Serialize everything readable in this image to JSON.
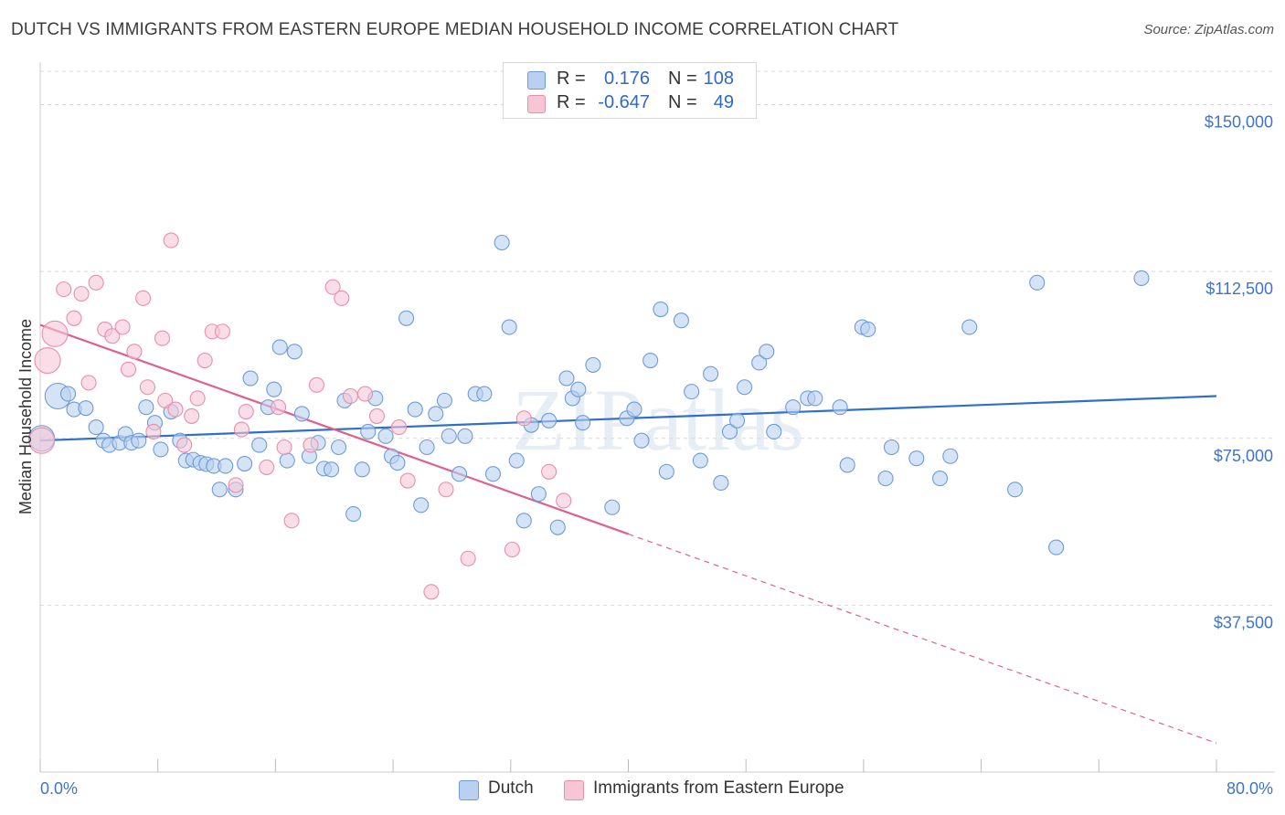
{
  "title": "DUTCH VS IMMIGRANTS FROM EASTERN EUROPE MEDIAN HOUSEHOLD INCOME CORRELATION CHART",
  "source": "Source: ZipAtlas.com",
  "watermark": "ZIPatlas",
  "legend_top": {
    "rows": [
      {
        "r_label": "R =",
        "r_value": "0.176",
        "n_label": "N =",
        "n_value": "108"
      },
      {
        "r_label": "R =",
        "r_value": "-0.647",
        "n_label": "N =",
        "n_value": "49"
      }
    ]
  },
  "colors": {
    "dutch_fill": "#b9d0f0",
    "dutch_stroke": "#6f9bd8",
    "dutch_line": "#2f6fca",
    "imm_fill": "#f7c6d5",
    "imm_stroke": "#e88fab",
    "imm_line": "#e0608d",
    "grid": "#d9d9d9",
    "accent_text": "#3f74c9"
  },
  "chart_data": {
    "type": "scatter",
    "title": "DUTCH VS IMMIGRANTS FROM EASTERN EUROPE MEDIAN HOUSEHOLD INCOME CORRELATION CHART",
    "xlabel": "",
    "ylabel": "Median Household Income",
    "xlim": [
      0,
      80
    ],
    "ylim": [
      0,
      157500
    ],
    "x_tick_labels": [
      "0.0%",
      "80.0%"
    ],
    "y_ticks": [
      37500,
      75000,
      112500,
      150000
    ],
    "y_tick_labels": [
      "$37,500",
      "$75,000",
      "$112,500",
      "$150,000"
    ],
    "grid": true,
    "legend_placement": "bottom",
    "series": [
      {
        "name": "Dutch",
        "R": 0.176,
        "N": 108,
        "trend": {
          "x": [
            0,
            80
          ],
          "y": [
            74500,
            84500
          ],
          "dashed_extension": false
        },
        "points": [
          [
            0.1,
            75000
          ],
          [
            1.2,
            84500
          ],
          [
            1.9,
            85000
          ],
          [
            2.3,
            81500
          ],
          [
            3.1,
            81800
          ],
          [
            3.8,
            77500
          ],
          [
            4.3,
            74500
          ],
          [
            4.7,
            73500
          ],
          [
            5.4,
            74000
          ],
          [
            5.8,
            76000
          ],
          [
            6.2,
            74000
          ],
          [
            6.7,
            74500
          ],
          [
            7.2,
            82000
          ],
          [
            7.8,
            78500
          ],
          [
            8.2,
            72500
          ],
          [
            8.9,
            81000
          ],
          [
            9.5,
            74500
          ],
          [
            9.9,
            70000
          ],
          [
            10.4,
            70200
          ],
          [
            10.9,
            69500
          ],
          [
            11.3,
            69200
          ],
          [
            11.8,
            68800
          ],
          [
            12.2,
            63500
          ],
          [
            12.6,
            68800
          ],
          [
            13.3,
            63500
          ],
          [
            13.9,
            69300
          ],
          [
            14.3,
            88500
          ],
          [
            14.9,
            73500
          ],
          [
            15.5,
            82000
          ],
          [
            15.9,
            86000
          ],
          [
            16.3,
            95500
          ],
          [
            16.8,
            70000
          ],
          [
            17.3,
            94500
          ],
          [
            17.8,
            80500
          ],
          [
            18.3,
            71000
          ],
          [
            18.9,
            74000
          ],
          [
            19.3,
            68200
          ],
          [
            19.8,
            68000
          ],
          [
            20.3,
            73000
          ],
          [
            20.7,
            83500
          ],
          [
            21.3,
            58000
          ],
          [
            21.9,
            68000
          ],
          [
            22.3,
            76500
          ],
          [
            22.8,
            84000
          ],
          [
            23.5,
            75500
          ],
          [
            23.9,
            71000
          ],
          [
            24.3,
            69500
          ],
          [
            24.9,
            102000
          ],
          [
            25.5,
            81500
          ],
          [
            25.9,
            60000
          ],
          [
            26.3,
            73000
          ],
          [
            26.9,
            80500
          ],
          [
            27.5,
            83500
          ],
          [
            27.8,
            75500
          ],
          [
            28.5,
            67000
          ],
          [
            28.9,
            75500
          ],
          [
            29.6,
            85000
          ],
          [
            30.2,
            85000
          ],
          [
            30.8,
            67000
          ],
          [
            31.4,
            119000
          ],
          [
            31.9,
            100000
          ],
          [
            32.4,
            70000
          ],
          [
            32.9,
            56500
          ],
          [
            33.4,
            78000
          ],
          [
            33.9,
            62500
          ],
          [
            34.6,
            79000
          ],
          [
            35.2,
            55000
          ],
          [
            35.8,
            88500
          ],
          [
            36.2,
            84000
          ],
          [
            36.6,
            86000
          ],
          [
            36.9,
            78500
          ],
          [
            37.6,
            91500
          ],
          [
            38.9,
            59500
          ],
          [
            39.9,
            79500
          ],
          [
            40.4,
            81500
          ],
          [
            40.9,
            74500
          ],
          [
            41.5,
            92500
          ],
          [
            42.2,
            104000
          ],
          [
            42.6,
            67500
          ],
          [
            43.6,
            101500
          ],
          [
            44.3,
            85500
          ],
          [
            44.9,
            70000
          ],
          [
            45.6,
            89500
          ],
          [
            46.3,
            65000
          ],
          [
            46.9,
            76500
          ],
          [
            47.4,
            79000
          ],
          [
            47.9,
            86500
          ],
          [
            48.9,
            92000
          ],
          [
            49.4,
            94500
          ],
          [
            49.9,
            76500
          ],
          [
            51.2,
            82000
          ],
          [
            52.2,
            84000
          ],
          [
            52.7,
            84000
          ],
          [
            54.4,
            82000
          ],
          [
            54.9,
            69000
          ],
          [
            55.9,
            100000
          ],
          [
            56.3,
            99500
          ],
          [
            57.5,
            66000
          ],
          [
            57.9,
            73000
          ],
          [
            59.6,
            70500
          ],
          [
            61.2,
            66000
          ],
          [
            61.9,
            71000
          ],
          [
            63.2,
            100000
          ],
          [
            66.3,
            63500
          ],
          [
            67.8,
            110000
          ],
          [
            69.1,
            50500
          ],
          [
            74.9,
            111000
          ]
        ]
      },
      {
        "name": "Immigrants from Eastern Europe",
        "R": -0.647,
        "N": 49,
        "trend": {
          "x": [
            0,
            40
          ],
          "y": [
            100500,
            53500
          ],
          "dashed_extension": {
            "x": [
              40,
              80
            ],
            "y": [
              53500,
              6500
            ]
          }
        },
        "points": [
          [
            0.1,
            74500
          ],
          [
            0.5,
            92500
          ],
          [
            1.0,
            98500
          ],
          [
            1.6,
            108500
          ],
          [
            2.3,
            102000
          ],
          [
            2.8,
            107500
          ],
          [
            3.3,
            87500
          ],
          [
            3.8,
            110000
          ],
          [
            4.4,
            99500
          ],
          [
            4.9,
            98000
          ],
          [
            5.6,
            100000
          ],
          [
            6.0,
            90500
          ],
          [
            6.4,
            94500
          ],
          [
            7.0,
            106500
          ],
          [
            7.3,
            86500
          ],
          [
            7.7,
            76500
          ],
          [
            8.3,
            97500
          ],
          [
            8.5,
            83500
          ],
          [
            8.9,
            119500
          ],
          [
            9.2,
            81500
          ],
          [
            9.8,
            73500
          ],
          [
            10.3,
            80000
          ],
          [
            10.7,
            84000
          ],
          [
            11.2,
            92500
          ],
          [
            11.7,
            99000
          ],
          [
            12.4,
            99000
          ],
          [
            13.3,
            64500
          ],
          [
            13.7,
            77000
          ],
          [
            14.0,
            81000
          ],
          [
            15.4,
            68500
          ],
          [
            16.2,
            82000
          ],
          [
            16.6,
            73000
          ],
          [
            17.1,
            56500
          ],
          [
            18.4,
            73500
          ],
          [
            18.8,
            87000
          ],
          [
            19.9,
            109000
          ],
          [
            20.5,
            106500
          ],
          [
            21.1,
            84500
          ],
          [
            22.1,
            85000
          ],
          [
            22.9,
            80000
          ],
          [
            24.4,
            77500
          ],
          [
            25.0,
            65500
          ],
          [
            26.6,
            40500
          ],
          [
            27.6,
            63500
          ],
          [
            29.1,
            48000
          ],
          [
            32.1,
            50000
          ],
          [
            32.9,
            79500
          ],
          [
            34.6,
            67500
          ],
          [
            35.6,
            61000
          ]
        ]
      }
    ]
  },
  "legend_bottom": [
    {
      "label": "Dutch"
    },
    {
      "label": "Immigrants from Eastern Europe"
    }
  ]
}
